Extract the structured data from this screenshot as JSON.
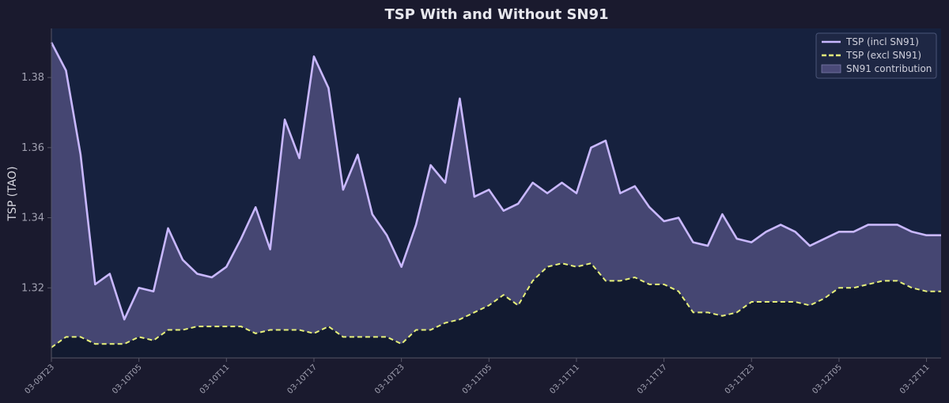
{
  "chart_data": {
    "type": "line",
    "title": "TSP With and Without SN91",
    "xlabel": "",
    "ylabel": "TSP (TAO)",
    "ylim": [
      1.3,
      1.394
    ],
    "yticks": [
      1.32,
      1.34,
      1.36,
      1.38
    ],
    "ytick_labels": [
      "1.32",
      "1.34",
      "1.36",
      "1.38"
    ],
    "xtick_labels": [
      "03-09T23",
      "03-10T05",
      "03-10T11",
      "03-10T17",
      "03-10T23",
      "03-11T05",
      "03-11T11",
      "03-11T17",
      "03-11T23",
      "03-12T05",
      "03-12T11"
    ],
    "xtick_indices": [
      0,
      6,
      12,
      18,
      24,
      30,
      36,
      42,
      48,
      54,
      60
    ],
    "x": [
      "03-09T23",
      "03-10T00",
      "03-10T01",
      "03-10T02",
      "03-10T03",
      "03-10T04",
      "03-10T05",
      "03-10T06",
      "03-10T07",
      "03-10T08",
      "03-10T09",
      "03-10T10",
      "03-10T11",
      "03-10T12",
      "03-10T13",
      "03-10T14",
      "03-10T15",
      "03-10T16",
      "03-10T17",
      "03-10T18",
      "03-10T19",
      "03-10T20",
      "03-10T21",
      "03-10T22",
      "03-10T23",
      "03-11T00",
      "03-11T01",
      "03-11T02",
      "03-11T03",
      "03-11T04",
      "03-11T05",
      "03-11T06",
      "03-11T07",
      "03-11T08",
      "03-11T09",
      "03-11T10",
      "03-11T11",
      "03-11T12",
      "03-11T13",
      "03-11T14",
      "03-11T15",
      "03-11T16",
      "03-11T17",
      "03-11T18",
      "03-11T19",
      "03-11T20",
      "03-11T21",
      "03-11T22",
      "03-11T23",
      "03-12T00",
      "03-12T01",
      "03-12T02",
      "03-12T03",
      "03-12T04",
      "03-12T05",
      "03-12T06",
      "03-12T07",
      "03-12T08",
      "03-12T09",
      "03-12T10",
      "03-12T11",
      "03-12T12"
    ],
    "series": [
      {
        "name": "TSP (incl SN91)",
        "color": "#c9b8ff",
        "style": "solid",
        "values": [
          1.39,
          1.382,
          1.358,
          1.321,
          1.324,
          1.311,
          1.32,
          1.319,
          1.337,
          1.328,
          1.324,
          1.323,
          1.326,
          1.334,
          1.343,
          1.331,
          1.368,
          1.357,
          1.386,
          1.377,
          1.348,
          1.358,
          1.341,
          1.335,
          1.326,
          1.338,
          1.355,
          1.35,
          1.374,
          1.346,
          1.348,
          1.342,
          1.344,
          1.35,
          1.347,
          1.35,
          1.347,
          1.36,
          1.362,
          1.347,
          1.349,
          1.343,
          1.339,
          1.34,
          1.333,
          1.332,
          1.341,
          1.334,
          1.333,
          1.336,
          1.338,
          1.336,
          1.332,
          1.334,
          1.336,
          1.336,
          1.338,
          1.338,
          1.338,
          1.336,
          1.335,
          1.335
        ]
      },
      {
        "name": "TSP (excl SN91)",
        "color": "#e6f07a",
        "style": "dashed",
        "values": [
          1.303,
          1.306,
          1.306,
          1.304,
          1.304,
          1.304,
          1.306,
          1.305,
          1.308,
          1.308,
          1.309,
          1.309,
          1.309,
          1.309,
          1.307,
          1.308,
          1.308,
          1.308,
          1.307,
          1.309,
          1.306,
          1.306,
          1.306,
          1.306,
          1.304,
          1.308,
          1.308,
          1.31,
          1.311,
          1.313,
          1.315,
          1.318,
          1.315,
          1.322,
          1.326,
          1.327,
          1.326,
          1.327,
          1.322,
          1.322,
          1.323,
          1.321,
          1.321,
          1.319,
          1.313,
          1.313,
          1.312,
          1.313,
          1.316,
          1.316,
          1.316,
          1.316,
          1.315,
          1.317,
          1.32,
          1.32,
          1.321,
          1.322,
          1.322,
          1.32,
          1.319,
          1.319
        ]
      }
    ],
    "fill": {
      "name": "SN91 contribution",
      "color": "#4a4a78"
    },
    "legend_position": "top-right",
    "colors": {
      "figure_bg": "#1a1a2e",
      "axes_bg": "#16213e",
      "title": "#e8e8ee",
      "axis_label": "#d8d8e0",
      "tick_label": "#a0a0b0",
      "spine": "#555566",
      "legend_bg": "#1e2744",
      "legend_border": "#4a5578",
      "legend_text": "#d0d0dc",
      "exclude_bottom_fill": "#121a30"
    }
  }
}
